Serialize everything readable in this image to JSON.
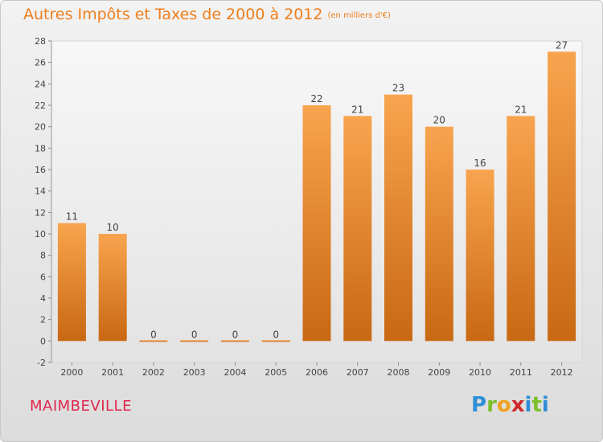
{
  "header": {
    "title": "Autres Impôts et Taxes de 2000 à 2012",
    "unit": "(en milliers d'€)"
  },
  "footer": {
    "city": "MAIMBEVILLE",
    "logo_letters": [
      "P",
      "r",
      "o",
      "x",
      "i",
      "t",
      "i"
    ],
    "logo_colors": [
      "#2f8fd6",
      "#7bbf2a",
      "#f0a020",
      "#d0282a",
      "#2f8fd6",
      "#7bbf2a",
      "#2f8fd6"
    ]
  },
  "chart_data": {
    "type": "bar",
    "title": "Autres Impôts et Taxes de 2000 à 2012",
    "xlabel": "",
    "ylabel": "",
    "categories": [
      "2000",
      "2001",
      "2002",
      "2003",
      "2004",
      "2005",
      "2006",
      "2007",
      "2008",
      "2009",
      "2010",
      "2011",
      "2012"
    ],
    "values": [
      11,
      10,
      0,
      0,
      0,
      0,
      22,
      21,
      23,
      20,
      16,
      21,
      27
    ],
    "ylim": [
      -2,
      28
    ],
    "yticks": [
      -2,
      0,
      2,
      4,
      6,
      8,
      10,
      12,
      14,
      16,
      18,
      20,
      22,
      24,
      26,
      28
    ],
    "grid": false,
    "data_labels": true,
    "bar_color_top": "#f8a44e",
    "bar_color_bottom": "#c96813"
  }
}
